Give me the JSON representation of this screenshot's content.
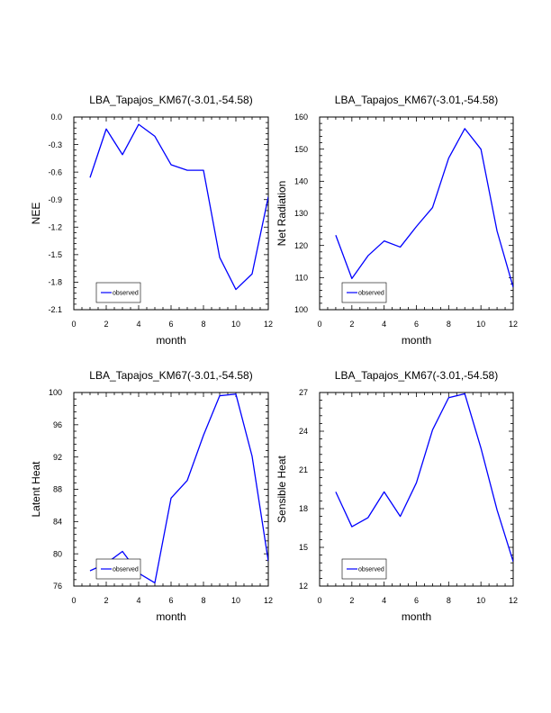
{
  "colors": {
    "series": "#0000ff",
    "axis": "#000000"
  },
  "chart_data": [
    {
      "type": "line",
      "title": "LBA_Tapajos_KM67(-3.01,-54.58)",
      "xlabel": "month",
      "ylabel": "NEE",
      "xlim": [
        0,
        12
      ],
      "ylim": [
        -2.1,
        0.0
      ],
      "xticks": [
        "0",
        "2",
        "4",
        "6",
        "8",
        "10",
        "12"
      ],
      "yticks": [
        "0.0",
        "-0.3",
        "-0.6",
        "-0.9",
        "-1.2",
        "-1.5",
        "-1.8",
        "-2.1"
      ],
      "ytick_values": [
        0.0,
        -0.3,
        -0.6,
        -0.9,
        -1.2,
        -1.5,
        -1.8,
        -2.1
      ],
      "legend": "observed",
      "legend_position": "bottom-left",
      "series": [
        {
          "name": "observed",
          "x": [
            1,
            2,
            3,
            4,
            5,
            6,
            7,
            8,
            9,
            10,
            11,
            12
          ],
          "values": [
            -0.66,
            -0.13,
            -0.41,
            -0.08,
            -0.21,
            -0.52,
            -0.58,
            -0.58,
            -1.53,
            -1.88,
            -1.71,
            -0.87
          ]
        }
      ]
    },
    {
      "type": "line",
      "title": "LBA_Tapajos_KM67(-3.01,-54.58)",
      "xlabel": "month",
      "ylabel": "Net Radiation",
      "xlim": [
        0,
        12
      ],
      "ylim": [
        100,
        160
      ],
      "xticks": [
        "0",
        "2",
        "4",
        "6",
        "8",
        "10",
        "12"
      ],
      "yticks": [
        "160",
        "150",
        "140",
        "130",
        "120",
        "110",
        "100"
      ],
      "ytick_values": [
        160,
        150,
        140,
        130,
        120,
        110,
        100
      ],
      "legend": "observed",
      "legend_position": "bottom-left",
      "series": [
        {
          "name": "observed",
          "x": [
            1,
            2,
            3,
            4,
            5,
            6,
            7,
            8,
            9,
            10,
            11,
            12
          ],
          "values": [
            123.2,
            109.7,
            116.8,
            121.4,
            119.5,
            125.9,
            131.8,
            147.2,
            156.4,
            150.0,
            124.5,
            107.0
          ]
        }
      ]
    },
    {
      "type": "line",
      "title": "LBA_Tapajos_KM67(-3.01,-54.58)",
      "xlabel": "month",
      "ylabel": "Latent Heat",
      "xlim": [
        0,
        12
      ],
      "ylim": [
        76,
        100
      ],
      "xticks": [
        "0",
        "2",
        "4",
        "6",
        "8",
        "10",
        "12"
      ],
      "yticks": [
        "100",
        "96",
        "92",
        "88",
        "84",
        "80",
        "76"
      ],
      "ytick_values": [
        100,
        96,
        92,
        88,
        84,
        80,
        76
      ],
      "legend": "observed",
      "legend_position": "bottom-left",
      "series": [
        {
          "name": "observed",
          "x": [
            1,
            2,
            3,
            4,
            5,
            6,
            7,
            8,
            9,
            10,
            11,
            12
          ],
          "values": [
            77.9,
            78.8,
            80.3,
            77.6,
            76.4,
            86.9,
            89.1,
            94.7,
            99.6,
            99.8,
            92.1,
            79.1
          ]
        }
      ]
    },
    {
      "type": "line",
      "title": "LBA_Tapajos_KM67(-3.01,-54.58)",
      "xlabel": "month",
      "ylabel": "Sensible Heat",
      "xlim": [
        0,
        12
      ],
      "ylim": [
        12,
        27
      ],
      "xticks": [
        "0",
        "2",
        "4",
        "6",
        "8",
        "10",
        "12"
      ],
      "yticks": [
        "27",
        "24",
        "21",
        "18",
        "15",
        "12"
      ],
      "ytick_values": [
        27,
        24,
        21,
        18,
        15,
        12
      ],
      "legend": "observed",
      "legend_position": "bottom-left",
      "series": [
        {
          "name": "observed",
          "x": [
            1,
            2,
            3,
            4,
            5,
            6,
            7,
            8,
            9,
            10,
            11,
            12
          ],
          "values": [
            19.3,
            16.6,
            17.3,
            19.3,
            17.4,
            20.0,
            24.1,
            26.6,
            26.9,
            22.7,
            17.9,
            13.9
          ]
        }
      ]
    }
  ]
}
